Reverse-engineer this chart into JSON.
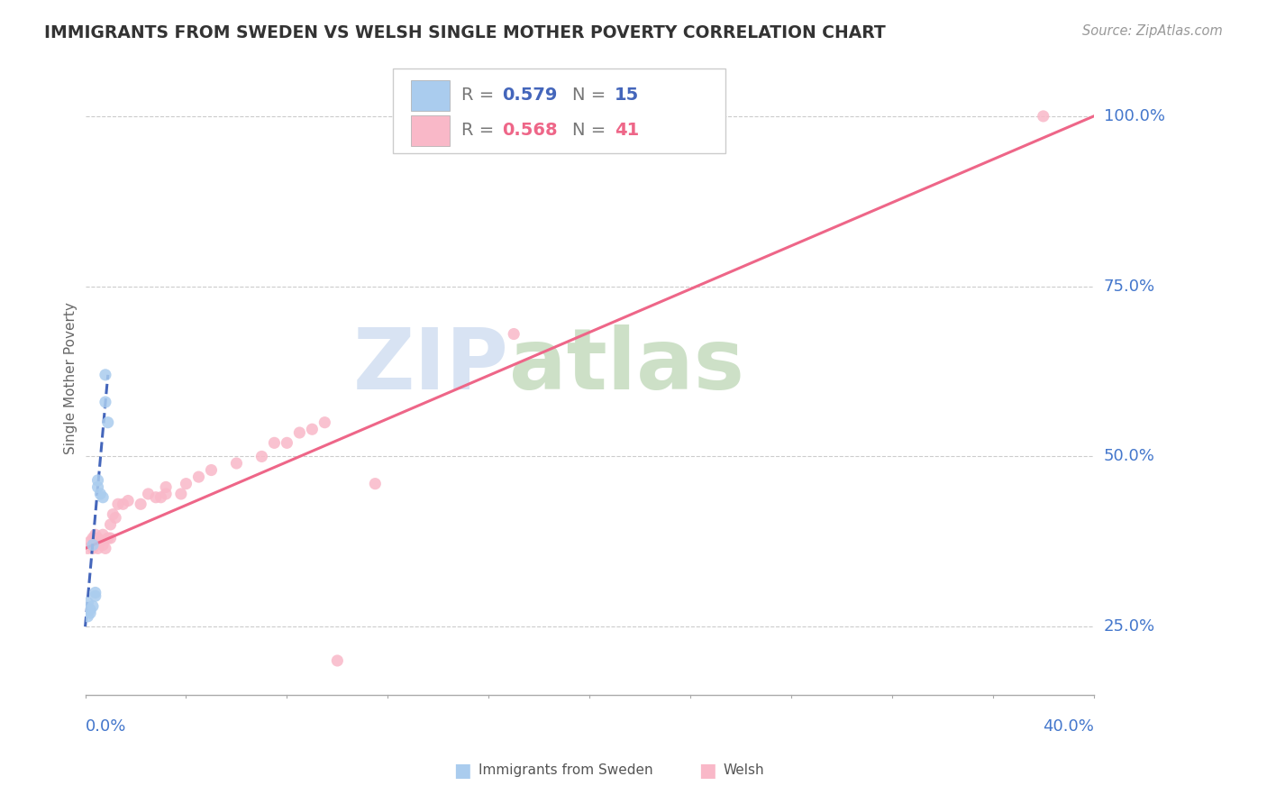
{
  "title": "IMMIGRANTS FROM SWEDEN VS WELSH SINGLE MOTHER POVERTY CORRELATION CHART",
  "source": "Source: ZipAtlas.com",
  "ylabel": "Single Mother Poverty",
  "ytick_labels": [
    "25.0%",
    "50.0%",
    "75.0%",
    "100.0%"
  ],
  "ytick_values": [
    0.25,
    0.5,
    0.75,
    1.0
  ],
  "xlim": [
    0.0,
    0.4
  ],
  "ylim": [
    0.15,
    1.08
  ],
  "legend_blue_R": "0.579",
  "legend_blue_N": "15",
  "legend_pink_R": "0.568",
  "legend_pink_N": "41",
  "blue_scatter_color": "#aaccee",
  "pink_scatter_color": "#f9b8c8",
  "blue_line_color": "#4466bb",
  "pink_line_color": "#ee6688",
  "watermark_zip": "ZIP",
  "watermark_atlas": "atlas",
  "watermark_color_zip": "#c8d8ee",
  "watermark_color_atlas": "#b8d4b0",
  "sweden_x": [
    0.001,
    0.001,
    0.002,
    0.002,
    0.003,
    0.003,
    0.004,
    0.004,
    0.005,
    0.005,
    0.006,
    0.007,
    0.008,
    0.008,
    0.009
  ],
  "sweden_y": [
    0.285,
    0.265,
    0.275,
    0.27,
    0.37,
    0.28,
    0.295,
    0.3,
    0.455,
    0.465,
    0.445,
    0.44,
    0.58,
    0.62,
    0.55
  ],
  "welsh_x": [
    0.001,
    0.002,
    0.003,
    0.003,
    0.004,
    0.004,
    0.005,
    0.005,
    0.006,
    0.007,
    0.007,
    0.008,
    0.009,
    0.01,
    0.01,
    0.011,
    0.012,
    0.013,
    0.015,
    0.017,
    0.022,
    0.025,
    0.028,
    0.03,
    0.032,
    0.032,
    0.038,
    0.04,
    0.045,
    0.05,
    0.06,
    0.07,
    0.075,
    0.08,
    0.085,
    0.09,
    0.095,
    0.1,
    0.115,
    0.17,
    0.38
  ],
  "welsh_y": [
    0.365,
    0.375,
    0.365,
    0.38,
    0.37,
    0.385,
    0.365,
    0.38,
    0.375,
    0.37,
    0.385,
    0.365,
    0.38,
    0.38,
    0.4,
    0.415,
    0.41,
    0.43,
    0.43,
    0.435,
    0.43,
    0.445,
    0.44,
    0.44,
    0.445,
    0.455,
    0.445,
    0.46,
    0.47,
    0.48,
    0.49,
    0.5,
    0.52,
    0.52,
    0.535,
    0.54,
    0.55,
    0.2,
    0.46,
    0.68,
    1.0
  ],
  "pink_line_x0": 0.0,
  "pink_line_y0": 0.365,
  "pink_line_x1": 0.4,
  "pink_line_y1": 1.0,
  "blue_line_x0": 0.0,
  "blue_line_y0": 0.25,
  "blue_line_x1": 0.009,
  "blue_line_y1": 0.62
}
